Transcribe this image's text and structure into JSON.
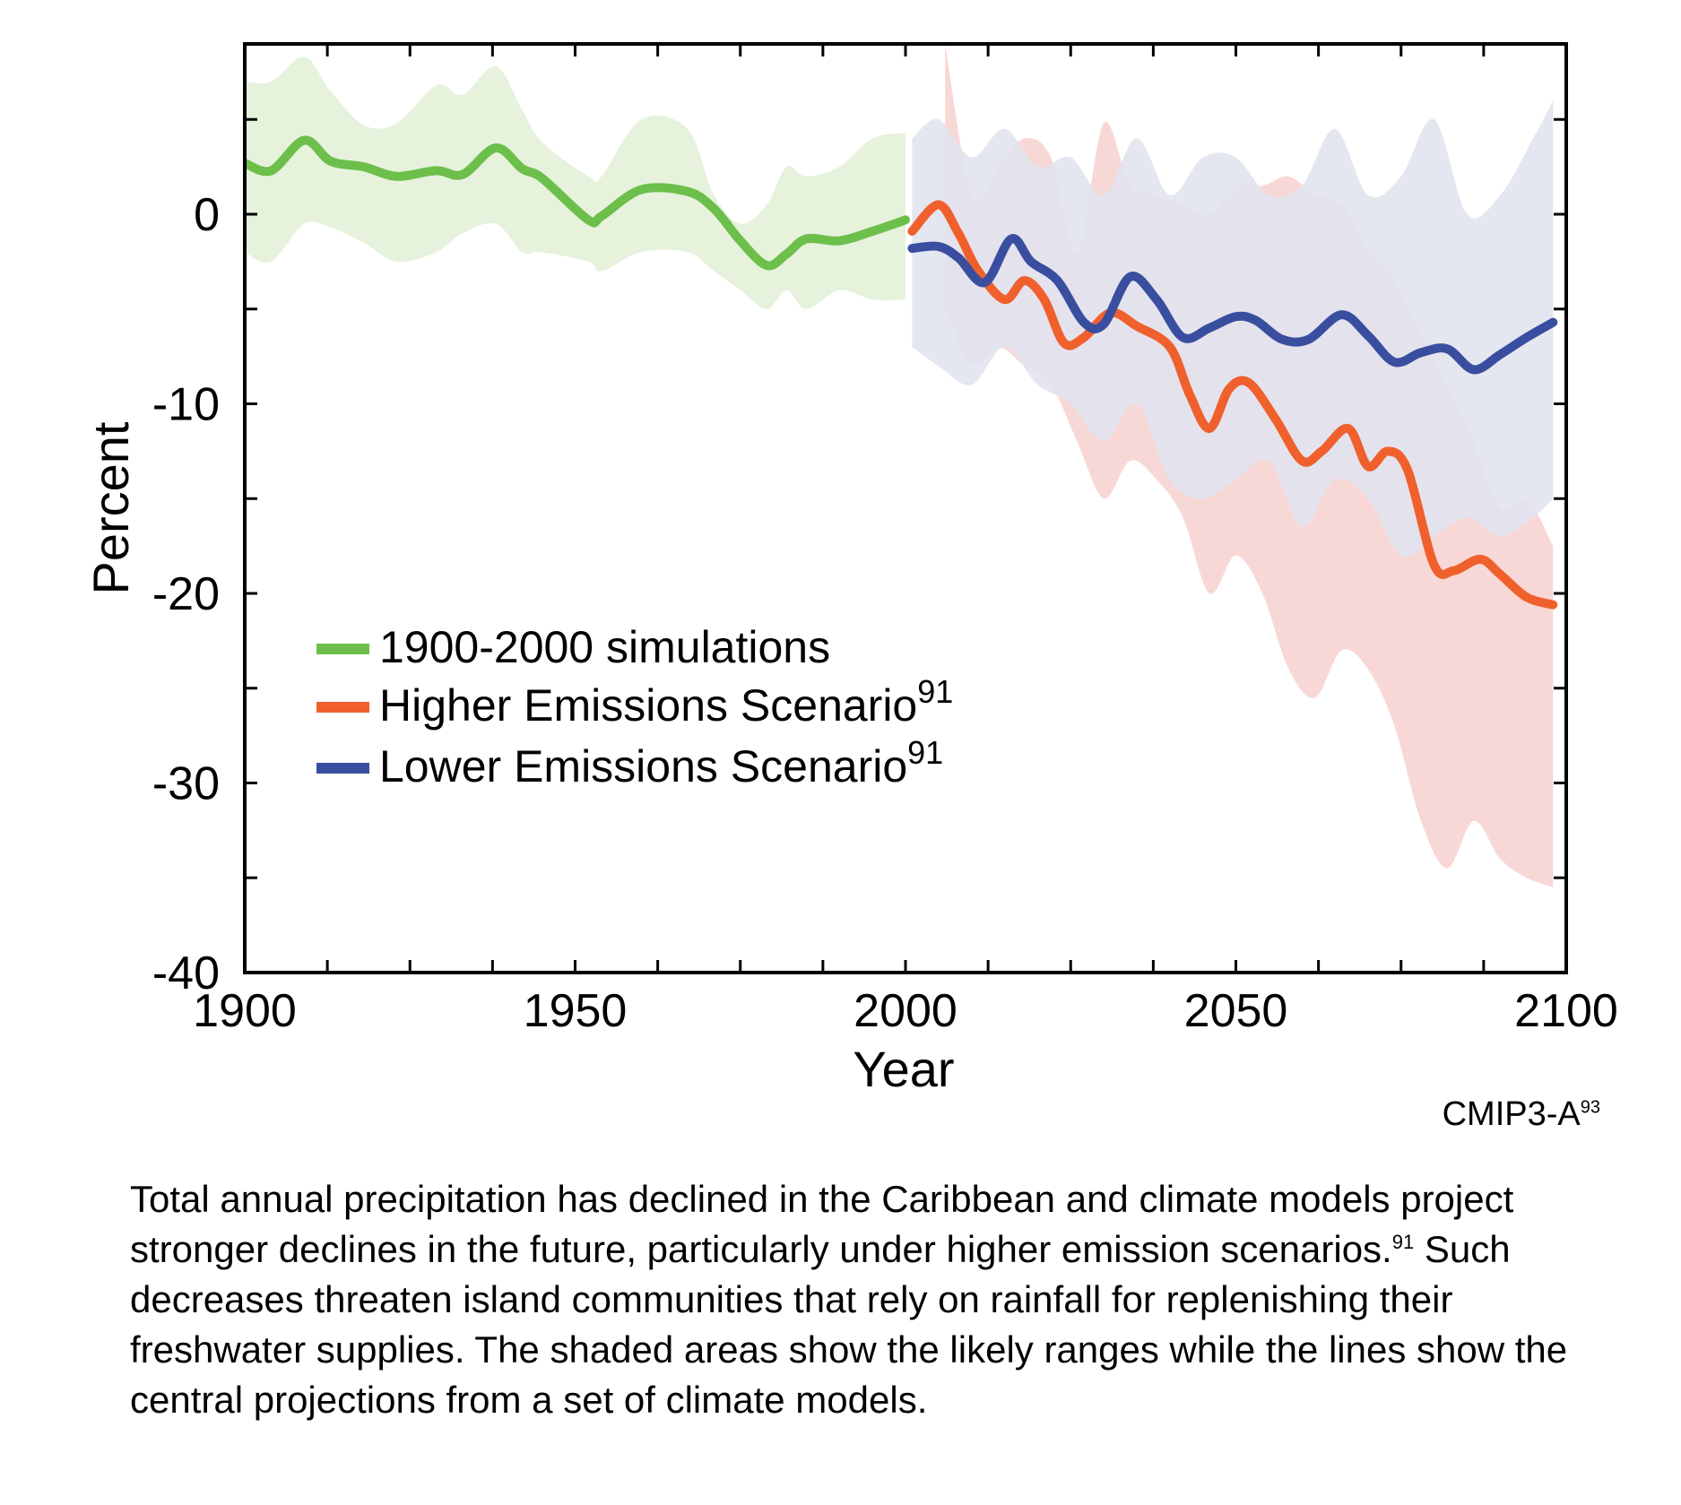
{
  "chart_data": {
    "type": "line",
    "xlabel": "Year",
    "ylabel": "Percent",
    "xlim": [
      1900,
      2100
    ],
    "ylim": [
      -40,
      10
    ],
    "x_ticks": [
      1900,
      1950,
      2000,
      2050,
      2100
    ],
    "y_ticks": [
      0,
      -10,
      -20,
      -30,
      -40
    ],
    "legend_position": "left-middle",
    "colors": {
      "historical": "#6cbf4a",
      "historical_band": "#e6f2dc",
      "higher": "#f0602d",
      "higher_band": "#f8d8d6",
      "lower": "#3a4ea0",
      "lower_band": "#e2e4ef"
    },
    "series": [
      {
        "name": "1900-2000 simulations",
        "key": "historical",
        "x": [
          1900,
          1904,
          1909,
          1913,
          1918,
          1923,
          1929,
          1933,
          1938,
          1942,
          1945,
          1952,
          1954,
          1960,
          1967,
          1971,
          1975,
          1979,
          1982,
          1985,
          1990,
          1995,
          2000
        ],
        "y": [
          2.7,
          2.3,
          3.9,
          2.8,
          2.5,
          2.0,
          2.3,
          2.1,
          3.5,
          2.4,
          1.9,
          -0.3,
          -0.1,
          1.3,
          1.2,
          0.3,
          -1.4,
          -2.7,
          -2.1,
          -1.3,
          -1.4,
          -0.9,
          -0.3
        ],
        "band_upper": [
          7.0,
          7.0,
          8.3,
          6.5,
          4.7,
          4.8,
          6.8,
          6.3,
          7.8,
          5.5,
          3.8,
          2.0,
          2.0,
          5.0,
          4.5,
          1.0,
          -0.5,
          0.5,
          2.5,
          2.0,
          2.5,
          4.0,
          4.3
        ],
        "band_lower": [
          -2.0,
          -2.5,
          -0.5,
          -0.7,
          -1.5,
          -2.5,
          -2.0,
          -1.0,
          -0.5,
          -2.0,
          -2.0,
          -2.5,
          -3.0,
          -2.0,
          -2.0,
          -3.0,
          -4.0,
          -5.0,
          -4.0,
          -5.0,
          -4.0,
          -4.5,
          -4.5
        ]
      },
      {
        "name": "Higher Emissions Scenario",
        "name_sup": "91",
        "key": "higher",
        "x": [
          2001,
          2005,
          2008,
          2011,
          2015,
          2018,
          2021,
          2024,
          2027,
          2031,
          2035,
          2040,
          2043,
          2046,
          2049,
          2052,
          2056,
          2060,
          2063,
          2067,
          2070,
          2073,
          2076,
          2080,
          2083,
          2087,
          2090,
          2094,
          2098
        ],
        "y": [
          -0.9,
          0.5,
          -1.0,
          -3.0,
          -4.5,
          -3.5,
          -4.5,
          -6.8,
          -6.5,
          -5.2,
          -5.9,
          -7.0,
          -9.5,
          -11.3,
          -9.2,
          -8.9,
          -10.8,
          -13.0,
          -12.5,
          -11.3,
          -13.3,
          -12.5,
          -13.5,
          -18.5,
          -18.8,
          -18.2,
          -19.0,
          -20.2,
          -20.6
        ]
      },
      {
        "name": "Lower Emissions Scenario",
        "name_sup": "91",
        "key": "lower",
        "x": [
          2001,
          2005,
          2008,
          2012,
          2016,
          2019,
          2023,
          2027,
          2030,
          2034,
          2038,
          2042,
          2046,
          2050,
          2053,
          2057,
          2061,
          2066,
          2070,
          2074,
          2078,
          2082,
          2086,
          2090,
          2094,
          2098
        ],
        "y": [
          -1.8,
          -1.7,
          -2.3,
          -3.6,
          -1.3,
          -2.5,
          -3.5,
          -5.7,
          -5.8,
          -3.3,
          -4.5,
          -6.5,
          -6.0,
          -5.4,
          -5.6,
          -6.6,
          -6.6,
          -5.3,
          -6.4,
          -7.8,
          -7.3,
          -7.1,
          -8.2,
          -7.4,
          -6.5,
          -5.7
        ]
      }
    ],
    "bands": [
      {
        "key": "higher",
        "x": [
          2006,
          2010,
          2014,
          2018,
          2022,
          2026,
          2030,
          2034,
          2038,
          2042,
          2046,
          2050,
          2054,
          2058,
          2062,
          2066,
          2070,
          2074,
          2078,
          2082,
          2086,
          2090,
          2094,
          2098
        ],
        "upper": [
          9.0,
          1.0,
          2.5,
          4.0,
          3.0,
          -2.0,
          4.8,
          1.5,
          1.0,
          0.5,
          0.0,
          1.5,
          1.5,
          2.0,
          1.0,
          0.5,
          -2.0,
          -3.5,
          -6.5,
          -9.0,
          -12.0,
          -15.5,
          -15.0,
          -17.5
        ],
        "lower": [
          -5.0,
          -8.0,
          -7.0,
          -8.0,
          -9.0,
          -12.0,
          -15.0,
          -13.0,
          -14.0,
          -16.0,
          -20.0,
          -18.0,
          -20.0,
          -24.0,
          -25.5,
          -23.0,
          -24.0,
          -27.0,
          -32.0,
          -34.5,
          -32.0,
          -34.0,
          -35.0,
          -35.5
        ]
      },
      {
        "key": "lower",
        "x": [
          2001,
          2005,
          2010,
          2015,
          2020,
          2025,
          2030,
          2035,
          2040,
          2045,
          2050,
          2055,
          2060,
          2065,
          2070,
          2075,
          2080,
          2085,
          2090,
          2095,
          2098
        ],
        "upper": [
          4.0,
          5.0,
          3.0,
          4.5,
          2.5,
          3.0,
          1.0,
          4.0,
          1.0,
          3.0,
          3.0,
          1.0,
          1.5,
          4.5,
          1.0,
          2.0,
          5.0,
          0.0,
          1.0,
          4.0,
          6.0
        ],
        "lower": [
          -7.0,
          -8.0,
          -9.0,
          -7.0,
          -9.0,
          -10.0,
          -12.0,
          -10.0,
          -14.0,
          -15.0,
          -14.0,
          -13.0,
          -16.5,
          -14.0,
          -15.0,
          -18.0,
          -17.0,
          -16.0,
          -17.0,
          -16.0,
          -15.0
        ]
      }
    ]
  },
  "credit": {
    "text": "CMIP3-A",
    "sup": "93"
  },
  "caption": {
    "part1": "Total annual precipitation has declined in the Caribbean and climate models project stronger declines in the future, particularly under higher emission scenarios.",
    "sup": "91",
    "part2": " Such decreases threaten island communities that rely on rainfall for replenishing their freshwater supplies. The shaded areas show the likely ranges while the lines show the central projections from a set of climate models."
  }
}
